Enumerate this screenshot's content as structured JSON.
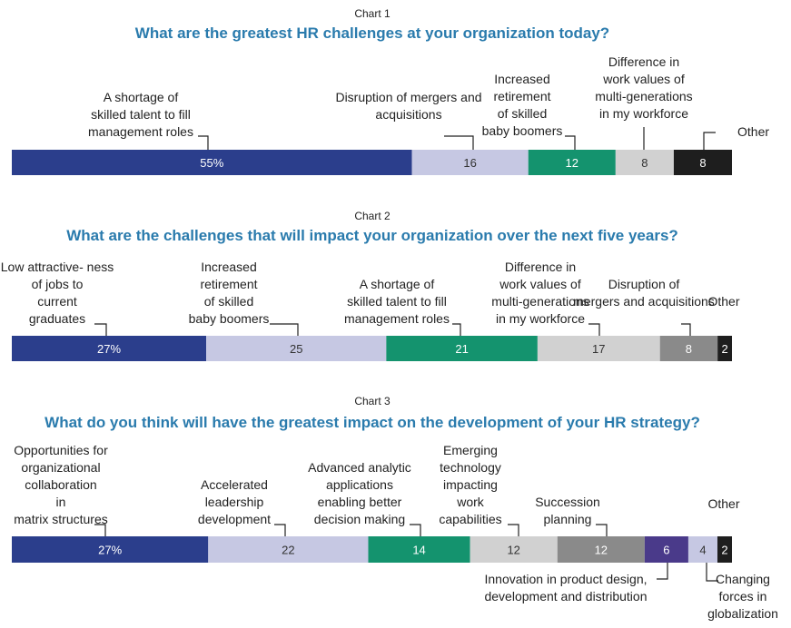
{
  "chart_data": [
    {
      "type": "bar",
      "orientation": "stacked-horizontal",
      "caption": "Chart 1",
      "title": "What are the greatest HR challenges at your organization today?",
      "unit": "%",
      "segments": [
        {
          "label": "A shortage of skilled talent to fill management roles",
          "value": 55,
          "display": "55%",
          "color": "#2b3e8c",
          "text_color": "#ffffff"
        },
        {
          "label": "Disruption of mergers and acquisitions",
          "value": 16,
          "display": "16",
          "color": "#c6c8e3",
          "text_color": "#333333"
        },
        {
          "label": "Increased retirement of skilled baby boomers",
          "value": 12,
          "display": "12",
          "color": "#14936e",
          "text_color": "#ffffff"
        },
        {
          "label": "Difference in work values of multi-generations in my workforce",
          "value": 8,
          "display": "8",
          "color": "#d1d1d1",
          "text_color": "#333333"
        },
        {
          "label": "Other",
          "value": 8,
          "display": "8",
          "color": "#1e1e1e",
          "text_color": "#ffffff"
        }
      ]
    },
    {
      "type": "bar",
      "orientation": "stacked-horizontal",
      "caption": "Chart 2",
      "title": "What are the challenges that will impact your organization over the next five years?",
      "unit": "%",
      "segments": [
        {
          "label": "Low attractive- ness of jobs to current graduates",
          "value": 27,
          "display": "27%",
          "color": "#2b3e8c",
          "text_color": "#ffffff"
        },
        {
          "label": "Increased retirement of skilled baby boomers",
          "value": 25,
          "display": "25",
          "color": "#c6c8e3",
          "text_color": "#333333"
        },
        {
          "label": "A shortage of skilled talent to fill management roles",
          "value": 21,
          "display": "21",
          "color": "#14936e",
          "text_color": "#ffffff"
        },
        {
          "label": "Difference in work values of multi-generations in my workforce",
          "value": 17,
          "display": "17",
          "color": "#d1d1d1",
          "text_color": "#333333"
        },
        {
          "label": "Disruption of mergers and acquisitions",
          "value": 8,
          "display": "8",
          "color": "#8a8a8a",
          "text_color": "#ffffff"
        },
        {
          "label": "Other",
          "value": 2,
          "display": "2",
          "color": "#1e1e1e",
          "text_color": "#ffffff"
        }
      ]
    },
    {
      "type": "bar",
      "orientation": "stacked-horizontal",
      "caption": "Chart 3",
      "title": "What do you think will have the greatest impact on the development of your HR strategy?",
      "unit": "%",
      "segments": [
        {
          "label": "Opportunities for organizational collaboration in matrix structures",
          "value": 27,
          "display": "27%",
          "color": "#2b3e8c",
          "text_color": "#ffffff"
        },
        {
          "label": "Accelerated leadership development",
          "value": 22,
          "display": "22",
          "color": "#c6c8e3",
          "text_color": "#333333"
        },
        {
          "label": "Advanced analytic applications enabling better decision making",
          "value": 14,
          "display": "14",
          "color": "#14936e",
          "text_color": "#ffffff"
        },
        {
          "label": "Emerging technology impacting work capabilities",
          "value": 12,
          "display": "12",
          "color": "#d1d1d1",
          "text_color": "#333333"
        },
        {
          "label": "Succession planning",
          "value": 12,
          "display": "12",
          "color": "#8a8a8a",
          "text_color": "#ffffff"
        },
        {
          "label": "Innovation in product design, development and distribution",
          "value": 6,
          "display": "6",
          "color": "#4a3a8a",
          "text_color": "#ffffff"
        },
        {
          "label": "Changing forces in globalization",
          "value": 4,
          "display": "4",
          "color": "#c6c8e3",
          "text_color": "#333333"
        },
        {
          "label": "Other",
          "value": 2,
          "display": "2",
          "color": "#1e1e1e",
          "text_color": "#ffffff"
        }
      ]
    }
  ]
}
